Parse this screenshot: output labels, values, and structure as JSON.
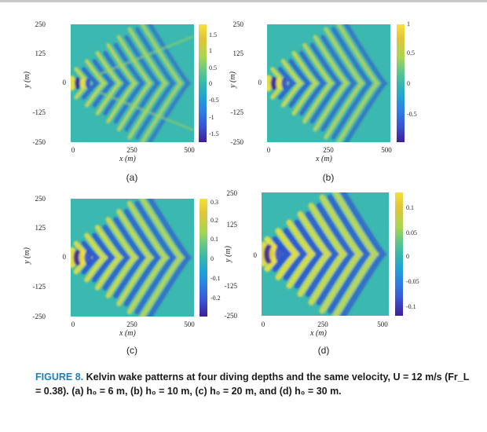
{
  "caption": {
    "lead": "FIGURE 8.",
    "text": "Kelvin wake patterns at four diving depths and the same velocity, U = 12 m/s (Fr_L = 0.38). (a) h₀ = 6 m, (b) h₀ = 10 m, (c) h₀ = 20 m, and (d) h₀ = 30 m."
  },
  "chart_data": [
    {
      "type": "heatmap",
      "panel_label": "(a)",
      "xlabel": "x (m)",
      "ylabel": "y (m)",
      "x_ticks": [
        "0",
        "250",
        "500"
      ],
      "y_ticks": [
        "250",
        "125",
        "0",
        "-125",
        "-250"
      ],
      "xlim": [
        0,
        500
      ],
      "ylim": [
        -250,
        250
      ],
      "colorbar_ticks": [
        "1.5",
        "1",
        "0.5",
        "0",
        "-0.5",
        "-1",
        "-1.5"
      ],
      "clim": [
        -1.8,
        1.8
      ],
      "depth_m": 6,
      "wave_count": 7,
      "outer_arms": true
    },
    {
      "type": "heatmap",
      "panel_label": "(b)",
      "xlabel": "x (m)",
      "ylabel": "y (m)",
      "x_ticks": [
        "0",
        "250",
        "500"
      ],
      "y_ticks": [
        "250",
        "125",
        "0",
        "-125",
        "-250"
      ],
      "xlim": [
        0,
        500
      ],
      "ylim": [
        -250,
        250
      ],
      "colorbar_ticks": [
        "1",
        "0.5",
        "0",
        "-0.5"
      ],
      "clim": [
        -1,
        1
      ],
      "depth_m": 10,
      "wave_count": 7,
      "outer_arms": false
    },
    {
      "type": "heatmap",
      "panel_label": "(c)",
      "xlabel": "x (m)",
      "ylabel": "y (m)",
      "x_ticks": [
        "0",
        "250",
        "500"
      ],
      "y_ticks": [
        "250",
        "125",
        "0",
        "-125",
        "-250"
      ],
      "xlim": [
        0,
        500
      ],
      "ylim": [
        -250,
        250
      ],
      "colorbar_ticks": [
        "0.3",
        "0.2",
        "0.1",
        "0",
        "-0.1",
        "-0.2"
      ],
      "clim": [
        -0.3,
        0.3
      ],
      "depth_m": 20,
      "wave_count": 7,
      "outer_arms": false
    },
    {
      "type": "heatmap",
      "panel_label": "(d)",
      "xlabel": "x (m)",
      "ylabel": "y (m)",
      "x_ticks": [
        "0",
        "250",
        "500"
      ],
      "y_ticks": [
        "250",
        "125",
        "0",
        "-125",
        "-250"
      ],
      "xlim": [
        0,
        500
      ],
      "ylim": [
        -250,
        250
      ],
      "colorbar_ticks": [
        "0.1",
        "0.05",
        "0",
        "-0.05",
        "-0.1"
      ],
      "clim": [
        -0.12,
        0.12
      ],
      "depth_m": 30,
      "wave_count": 7,
      "outer_arms": false
    }
  ],
  "colors": {
    "background": "#3bb8b0",
    "positive": "#f2e23a",
    "positive_mid": "#a9d651",
    "negative": "#2f4fd0",
    "negative_deep": "#3e1f96",
    "caption_lead": "#1f7ec0"
  }
}
